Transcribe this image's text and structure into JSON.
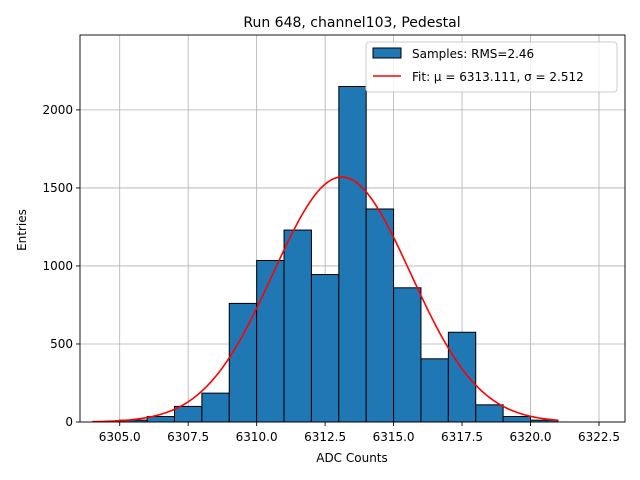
{
  "chart_data": {
    "type": "bar",
    "title": "Run 648, channel103, Pedestal",
    "xlabel": "ADC Counts",
    "ylabel": "Entries",
    "xlim": [
      6303.55,
      6323.45
    ],
    "ylim": [
      0,
      2480
    ],
    "xticks": [
      6305.0,
      6307.5,
      6310.0,
      6312.5,
      6315.0,
      6317.5,
      6320.0,
      6322.5
    ],
    "xtick_labels": [
      "6305.0",
      "6307.5",
      "6310.0",
      "6312.5",
      "6315.0",
      "6317.5",
      "6320.0",
      "6322.5"
    ],
    "yticks": [
      0,
      500,
      1000,
      1500,
      2000
    ],
    "ytick_labels": [
      "0",
      "500",
      "1000",
      "1500",
      "2000"
    ],
    "grid": true,
    "legend_position": "top-right",
    "histogram": {
      "name": "Samples: RMS=2.46",
      "color": "#1f77b4",
      "edgecolor": "#000000",
      "bins": [
        {
          "x0": 6305,
          "x1": 6306,
          "count": 12
        },
        {
          "x0": 6306,
          "x1": 6307,
          "count": 35
        },
        {
          "x0": 6307,
          "x1": 6308,
          "count": 100
        },
        {
          "x0": 6308,
          "x1": 6309,
          "count": 185
        },
        {
          "x0": 6309,
          "x1": 6310,
          "count": 760
        },
        {
          "x0": 6310,
          "x1": 6311,
          "count": 1035
        },
        {
          "x0": 6311,
          "x1": 6312,
          "count": 1230
        },
        {
          "x0": 6312,
          "x1": 6313,
          "count": 945
        },
        {
          "x0": 6313,
          "x1": 6314,
          "count": 2150
        },
        {
          "x0": 6314,
          "x1": 6315,
          "count": 1365
        },
        {
          "x0": 6315,
          "x1": 6316,
          "count": 860
        },
        {
          "x0": 6316,
          "x1": 6317,
          "count": 405
        },
        {
          "x0": 6317,
          "x1": 6318,
          "count": 575
        },
        {
          "x0": 6318,
          "x1": 6319,
          "count": 110
        },
        {
          "x0": 6319,
          "x1": 6320,
          "count": 35
        },
        {
          "x0": 6320,
          "x1": 6321,
          "count": 12
        }
      ]
    },
    "fit": {
      "name": "Fit: μ = 6313.111, σ = 2.512",
      "color": "#ff0000",
      "mu": 6313.111,
      "sigma": 2.512,
      "amplitude": 1570,
      "x_range": [
        6304,
        6321
      ]
    }
  }
}
